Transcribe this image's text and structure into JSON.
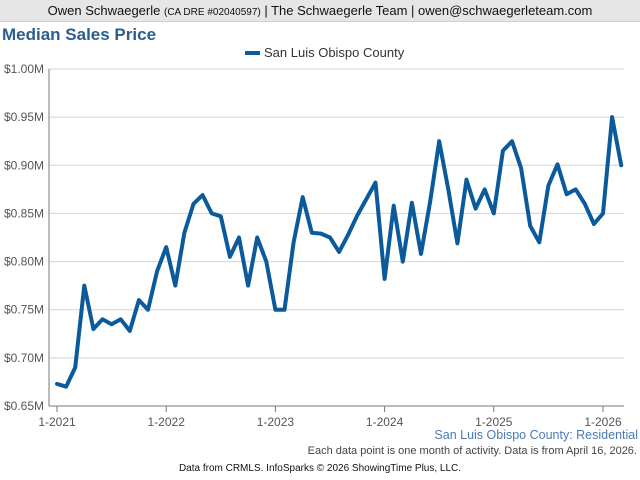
{
  "banner": {
    "name": "Owen Schwaegerle",
    "license": "(CA DRE #02040597)",
    "rest": "| The Schwaegerle Team | owen@schwaegerleteam.com"
  },
  "series_caption": "San Luis Obispo County: Residential",
  "note": "Each data point is one month of activity. Data is from April 16, 2026.",
  "footer": "Data from CRMLS. InfoSparks © 2026 ShowingTime Plus, LLC.",
  "colors": {
    "line": "#0a5a9c",
    "title": "#2a5e8c",
    "grid": "#d4d4d4"
  },
  "chart_data": {
    "type": "line",
    "title": "Median Sales Price",
    "legend": "top-center",
    "grid": true,
    "ylim": [
      650000,
      1000000
    ],
    "y_ticks": [
      650000,
      700000,
      750000,
      800000,
      850000,
      900000,
      950000,
      1000000
    ],
    "y_tick_labels": [
      "$0.65M",
      "$0.70M",
      "$0.75M",
      "$0.80M",
      "$0.85M",
      "$0.90M",
      "$0.95M",
      "$1.00M"
    ],
    "x_ticks": [
      0,
      12,
      24,
      36,
      48,
      60
    ],
    "x_tick_labels": [
      "1-2021",
      "1-2022",
      "1-2023",
      "1-2024",
      "1-2025",
      "1-2026"
    ],
    "x_labels": [
      "1-2021",
      "2-2021",
      "3-2021",
      "4-2021",
      "5-2021",
      "6-2021",
      "7-2021",
      "8-2021",
      "9-2021",
      "10-2021",
      "11-2021",
      "12-2021",
      "1-2022",
      "2-2022",
      "3-2022",
      "4-2022",
      "5-2022",
      "6-2022",
      "7-2022",
      "8-2022",
      "9-2022",
      "10-2022",
      "11-2022",
      "12-2022",
      "1-2023",
      "2-2023",
      "3-2023",
      "4-2023",
      "5-2023",
      "6-2023",
      "7-2023",
      "8-2023",
      "9-2023",
      "10-2023",
      "11-2023",
      "12-2023",
      "1-2024",
      "2-2024",
      "3-2024",
      "4-2024",
      "5-2024",
      "6-2024",
      "7-2024",
      "8-2024",
      "9-2024",
      "10-2024",
      "11-2024",
      "12-2024",
      "1-2025",
      "2-2025",
      "3-2025",
      "4-2025",
      "5-2025",
      "6-2025",
      "7-2025",
      "8-2025",
      "9-2025",
      "10-2025",
      "11-2025",
      "12-2025",
      "1-2026",
      "2-2026",
      "3-2026"
    ],
    "series": [
      {
        "name": "San Luis Obispo County",
        "values": [
          673000,
          670000,
          690000,
          775000,
          730000,
          740000,
          735000,
          740000,
          728000,
          760000,
          750000,
          790000,
          815000,
          775000,
          830000,
          860000,
          869000,
          850000,
          847000,
          805000,
          825000,
          775000,
          825000,
          800000,
          750000,
          750000,
          820000,
          867000,
          830000,
          829000,
          825000,
          810000,
          828000,
          848000,
          865000,
          882000,
          782000,
          858000,
          800000,
          861000,
          808000,
          862000,
          925000,
          875000,
          819000,
          885000,
          855000,
          875000,
          850000,
          915000,
          925000,
          897000,
          837000,
          820000,
          879000,
          901000,
          870000,
          875000,
          860000,
          839000,
          850000,
          950000,
          900000
        ]
      }
    ]
  }
}
